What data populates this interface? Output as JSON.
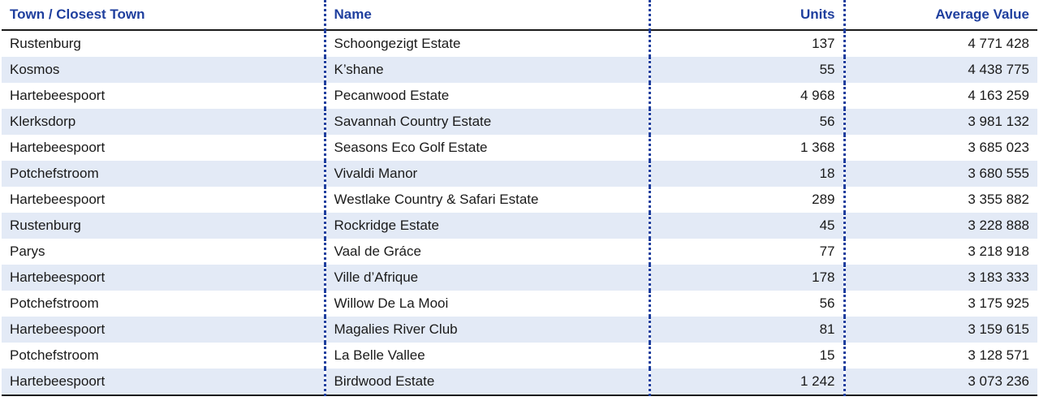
{
  "table": {
    "headers": [
      "Town / Closest Town",
      "Name",
      "Units",
      "Average Value"
    ],
    "rows": [
      [
        "Rustenburg",
        "Schoongezigt Estate",
        "137",
        "4 771 428"
      ],
      [
        "Kosmos",
        "K’shane",
        "55",
        "4 438 775"
      ],
      [
        "Hartebeespoort",
        "Pecanwood Estate",
        "4 968",
        "4 163 259"
      ],
      [
        "Klerksdorp",
        "Savannah Country Estate",
        "56",
        "3 981 132"
      ],
      [
        "Hartebeespoort",
        "Seasons Eco Golf Estate",
        "1 368",
        "3 685 023"
      ],
      [
        "Potchefstroom",
        "Vivaldi Manor",
        "18",
        "3 680 555"
      ],
      [
        "Hartebeespoort",
        "Westlake Country & Safari Estate",
        "289",
        "3 355 882"
      ],
      [
        "Rustenburg",
        "Rockridge Estate",
        "45",
        "3 228 888"
      ],
      [
        "Parys",
        "Vaal de Gráce",
        "77",
        "3 218 918"
      ],
      [
        "Hartebeespoort",
        "Ville d’Afrique",
        "178",
        "3 183 333"
      ],
      [
        "Potchefstroom",
        "Willow De La Mooi",
        "56",
        "3 175 925"
      ],
      [
        "Hartebeespoort",
        "Magalies River Club",
        "81",
        "3 159 615"
      ],
      [
        "Potchefstroom",
        "La Belle Vallee",
        "15",
        "3 128 571"
      ],
      [
        "Hartebeespoort",
        "Birdwood Estate",
        "1 242",
        "3 073 236"
      ]
    ]
  },
  "colors": {
    "header_text": "#1f3f9e",
    "stripe": "#e3eaf6",
    "rule": "#1a1a1a"
  }
}
